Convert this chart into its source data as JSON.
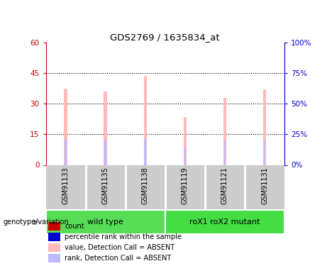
{
  "title": "GDS2769 / 1635834_at",
  "samples": [
    "GSM91133",
    "GSM91135",
    "GSM91138",
    "GSM91119",
    "GSM91121",
    "GSM91131"
  ],
  "bar_values": [
    37.5,
    36.0,
    43.5,
    23.5,
    33.0,
    37.0
  ],
  "rank_values": [
    20.5,
    20.0,
    21.0,
    14.5,
    20.0,
    20.0
  ],
  "rank_marker_vals": [
    20.5,
    20.0,
    21.0,
    14.5,
    20.0,
    20.0
  ],
  "groups": [
    {
      "label": "wild type",
      "color": "#55dd55",
      "n": 3
    },
    {
      "label": "roX1 roX2 mutant",
      "color": "#44dd44",
      "n": 3
    }
  ],
  "ylim_left": [
    0,
    60
  ],
  "ylim_right": [
    0,
    100
  ],
  "yticks_left": [
    0,
    15,
    30,
    45,
    60
  ],
  "yticks_right": [
    0,
    25,
    50,
    75,
    100
  ],
  "ytick_labels_left": [
    "0",
    "15",
    "30",
    "45",
    "60"
  ],
  "ytick_labels_right": [
    "0%",
    "25%",
    "50%",
    "75%",
    "100%"
  ],
  "bar_color_absent": "#ffbbbb",
  "rank_color_absent": "#bbbbff",
  "left_axis_color": "#cc0000",
  "right_axis_color": "#0000cc",
  "background_color": "#ffffff",
  "sample_box_color": "#cccccc",
  "sample_sep_color": "#ffffff",
  "genotype_label": "genotype/variation",
  "legend_items": [
    {
      "color": "#cc0000",
      "label": "count"
    },
    {
      "color": "#0000cc",
      "label": "percentile rank within the sample"
    },
    {
      "color": "#ffbbbb",
      "label": "value, Detection Call = ABSENT"
    },
    {
      "color": "#bbbbff",
      "label": "rank, Detection Call = ABSENT"
    }
  ]
}
